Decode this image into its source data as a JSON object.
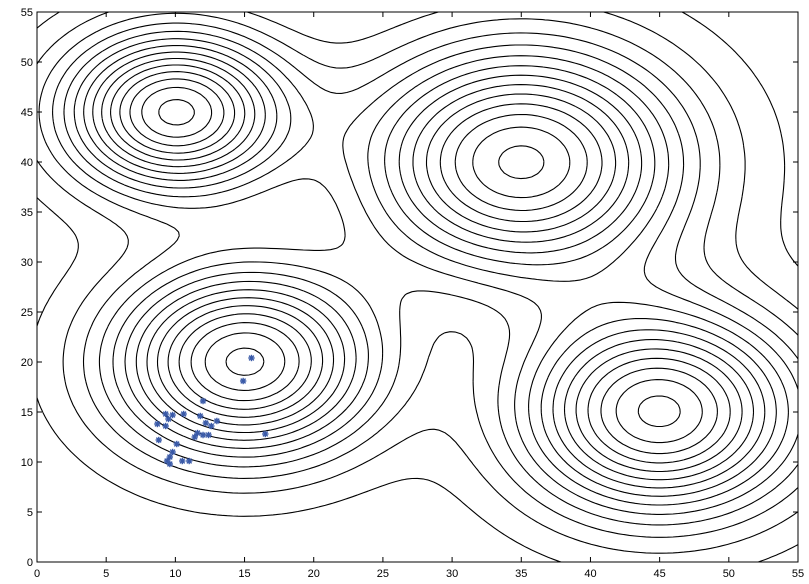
{
  "chart_data": {
    "type": "scatter",
    "title": "",
    "xlabel": "",
    "ylabel": "",
    "xlim": [
      0,
      55
    ],
    "ylim": [
      0,
      55
    ],
    "grid": false,
    "xticks": [
      "0",
      "5",
      "10",
      "15",
      "20",
      "25",
      "30",
      "35",
      "40",
      "45",
      "50",
      "55"
    ],
    "yticks": [
      "0",
      "5",
      "10",
      "15",
      "20",
      "25",
      "30",
      "35",
      "40",
      "45",
      "50",
      "55"
    ],
    "contour": {
      "line_color": "#000000",
      "peaks": [
        {
          "center": [
            10,
            45
          ],
          "sigma": 5.5,
          "level_count": 5
        },
        {
          "center": [
            35,
            40
          ],
          "sigma": 8.0,
          "level_count": 9
        },
        {
          "center": [
            15,
            20
          ],
          "sigma": 6.5,
          "level_count": 3
        },
        {
          "center": [
            45,
            15
          ],
          "sigma": 7.0,
          "level_count": 8
        }
      ]
    },
    "series": [
      {
        "marker": "*",
        "color": "#3a5aa8",
        "points": [
          [
            15.5,
            20.4
          ],
          [
            14.9,
            18.1
          ],
          [
            12.0,
            16.1
          ],
          [
            8.7,
            13.8
          ],
          [
            9.3,
            14.8
          ],
          [
            9.8,
            14.7
          ],
          [
            9.5,
            14.3
          ],
          [
            10.6,
            14.8
          ],
          [
            11.8,
            14.6
          ],
          [
            9.3,
            13.6
          ],
          [
            12.2,
            13.9
          ],
          [
            12.6,
            13.6
          ],
          [
            13.0,
            14.1
          ],
          [
            11.6,
            12.9
          ],
          [
            11.4,
            12.5
          ],
          [
            12.0,
            12.7
          ],
          [
            12.4,
            12.7
          ],
          [
            8.8,
            12.2
          ],
          [
            10.1,
            11.8
          ],
          [
            9.8,
            11.0
          ],
          [
            9.6,
            10.5
          ],
          [
            9.4,
            10.1
          ],
          [
            9.6,
            9.8
          ],
          [
            10.5,
            10.1
          ],
          [
            11.0,
            10.1
          ],
          [
            16.5,
            12.8
          ]
        ]
      }
    ]
  }
}
